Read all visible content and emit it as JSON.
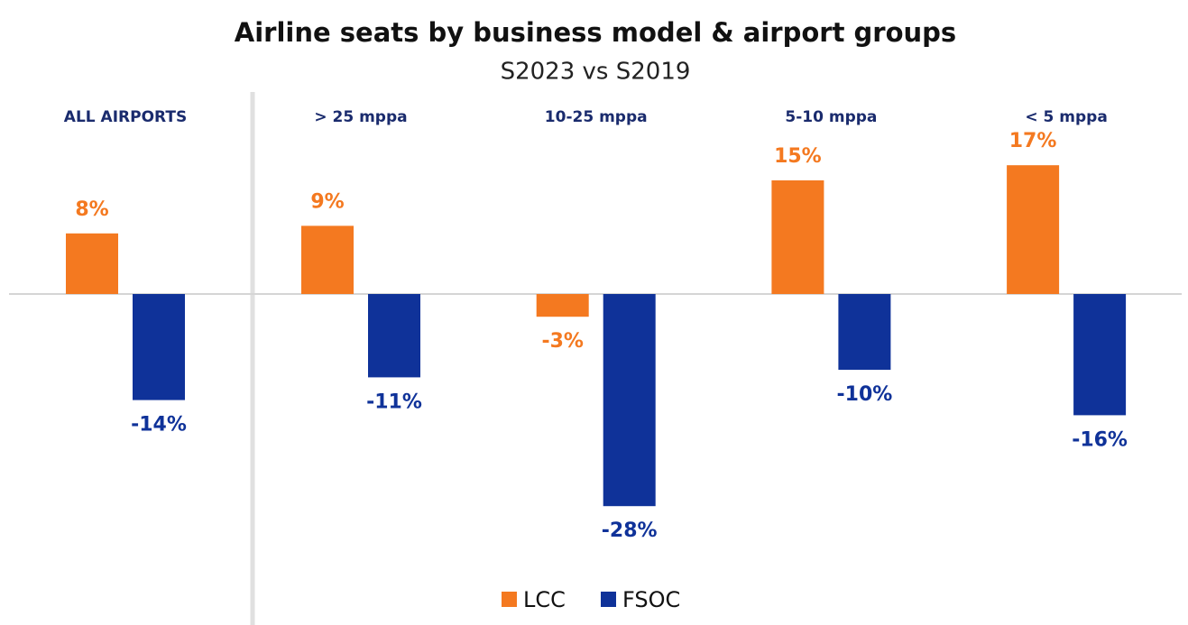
{
  "chart_data": {
    "type": "bar",
    "title": "Airline seats by business model & airport groups",
    "subtitle": "S2023 vs S2019",
    "categories": [
      "ALL AIRPORTS",
      "> 25 mppa",
      "10-25 mppa",
      "5-10 mppa",
      "< 5 mppa"
    ],
    "series": [
      {
        "name": "LCC",
        "color": "#f47920",
        "values": [
          8,
          9,
          -3,
          15,
          17
        ],
        "value_labels": [
          "8%",
          "9%",
          "-3%",
          "15%",
          "17%"
        ]
      },
      {
        "name": "FSOC",
        "color": "#0f3299",
        "values": [
          -14,
          -11,
          -28,
          -10,
          -16
        ],
        "value_labels": [
          "-14%",
          "-11%",
          "-28%",
          "-10%",
          "-16%"
        ]
      }
    ],
    "legend": "bottom"
  }
}
